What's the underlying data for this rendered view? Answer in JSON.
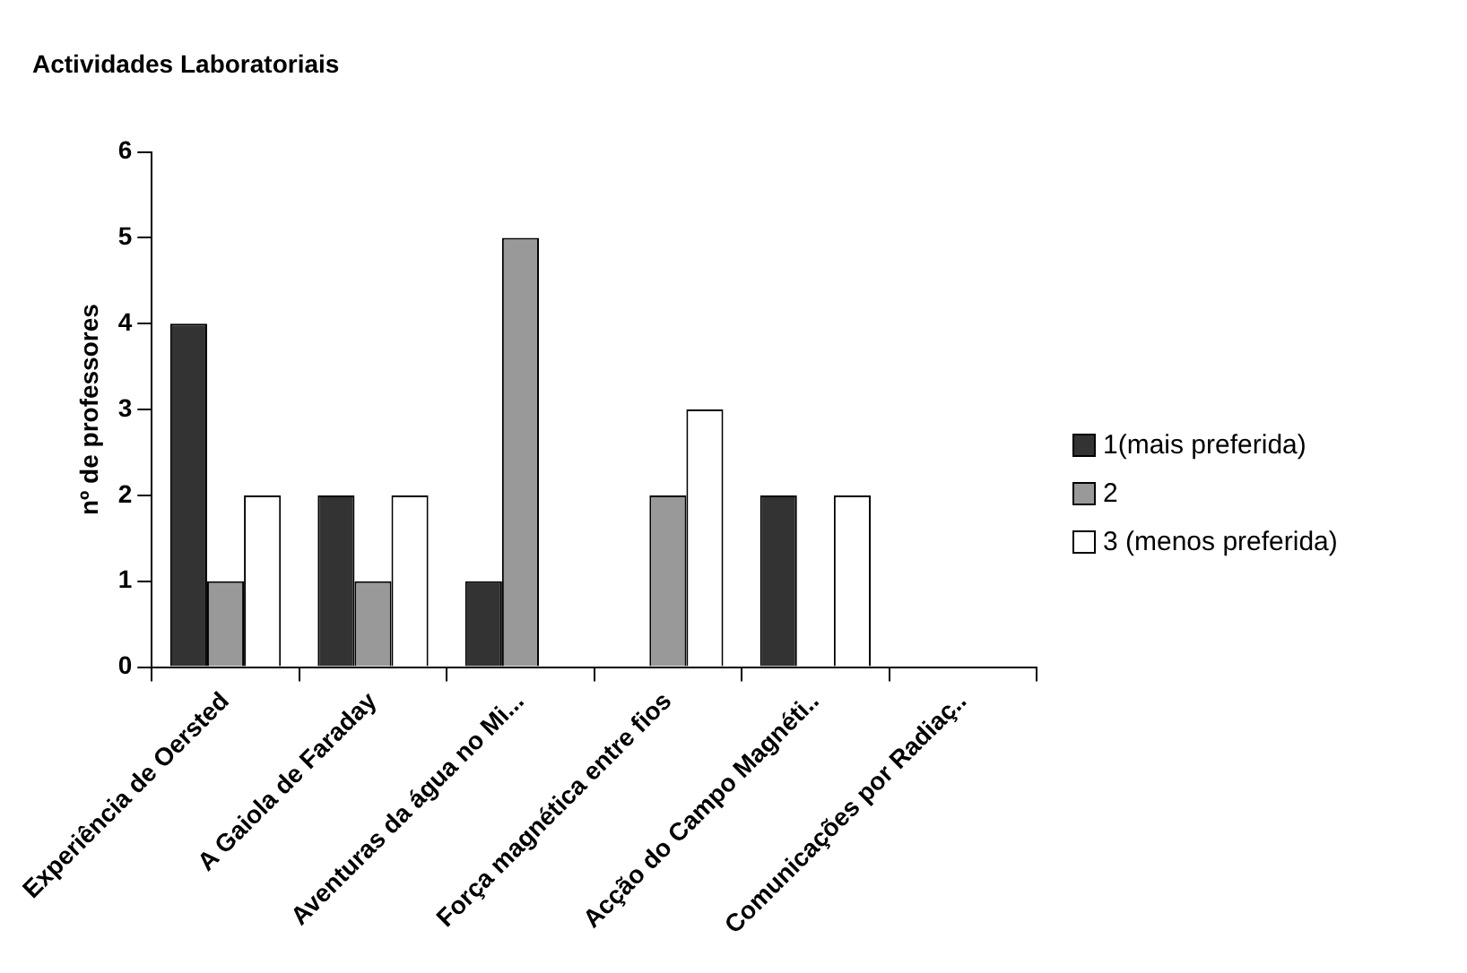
{
  "chart_data": {
    "type": "bar",
    "title": "Actividades Laboratoriais",
    "ylabel": "nº de professores",
    "categories": [
      "Experiência de Oersted",
      "A Gaiola de Faraday",
      "Aventuras da água no Mi...",
      "Força magnética entre fios",
      "Acção do Campo Magnéti..",
      "Comunicações por Radiaç.."
    ],
    "series": [
      {
        "name": "1(mais preferida)",
        "color": "#333333",
        "values": [
          4,
          2,
          1,
          0,
          2,
          0
        ]
      },
      {
        "name": "2",
        "color": "#999999",
        "values": [
          1,
          1,
          5,
          2,
          0,
          0
        ]
      },
      {
        "name": "3 (menos preferida)",
        "color": "#ffffff",
        "values": [
          2,
          2,
          0,
          3,
          2,
          0
        ]
      }
    ],
    "ylim": [
      0,
      6
    ],
    "yticks": [
      0,
      1,
      2,
      3,
      4,
      5,
      6
    ],
    "grid": false,
    "legend": "right"
  }
}
